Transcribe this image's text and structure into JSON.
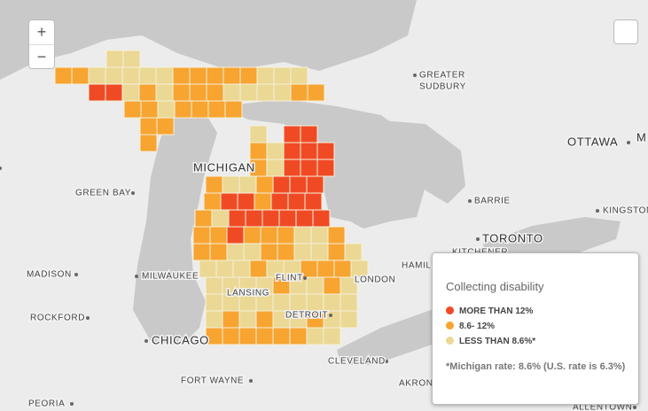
{
  "map": {
    "zoom_in": "+",
    "zoom_out": "−",
    "labels": [
      "MICHIGAN",
      "GREEN BAY",
      "GREATER",
      "SUDBURY",
      "OTTAWA",
      "M",
      "KINGSTON",
      "BARRIE",
      "TORONTO",
      "KITCHENER",
      "HAMIL",
      "LONDON",
      "MADISON",
      "MILWAUKEE",
      "ROCKFORD",
      "CHICAGO",
      "LANSING",
      "FLINT",
      "DETROIT",
      "CLEVELAND",
      "FORT WAYNE",
      "AKRON",
      "PEORIA",
      "ALLENTOWN"
    ]
  },
  "legend": {
    "title": "Collecting disability",
    "items": [
      "MORE THAN 12%",
      "8.6- 12%",
      "LESS THAN 8.6%*"
    ],
    "note": "*Michigan rate: 8.6% (U.S. rate is 6.3%)"
  }
}
